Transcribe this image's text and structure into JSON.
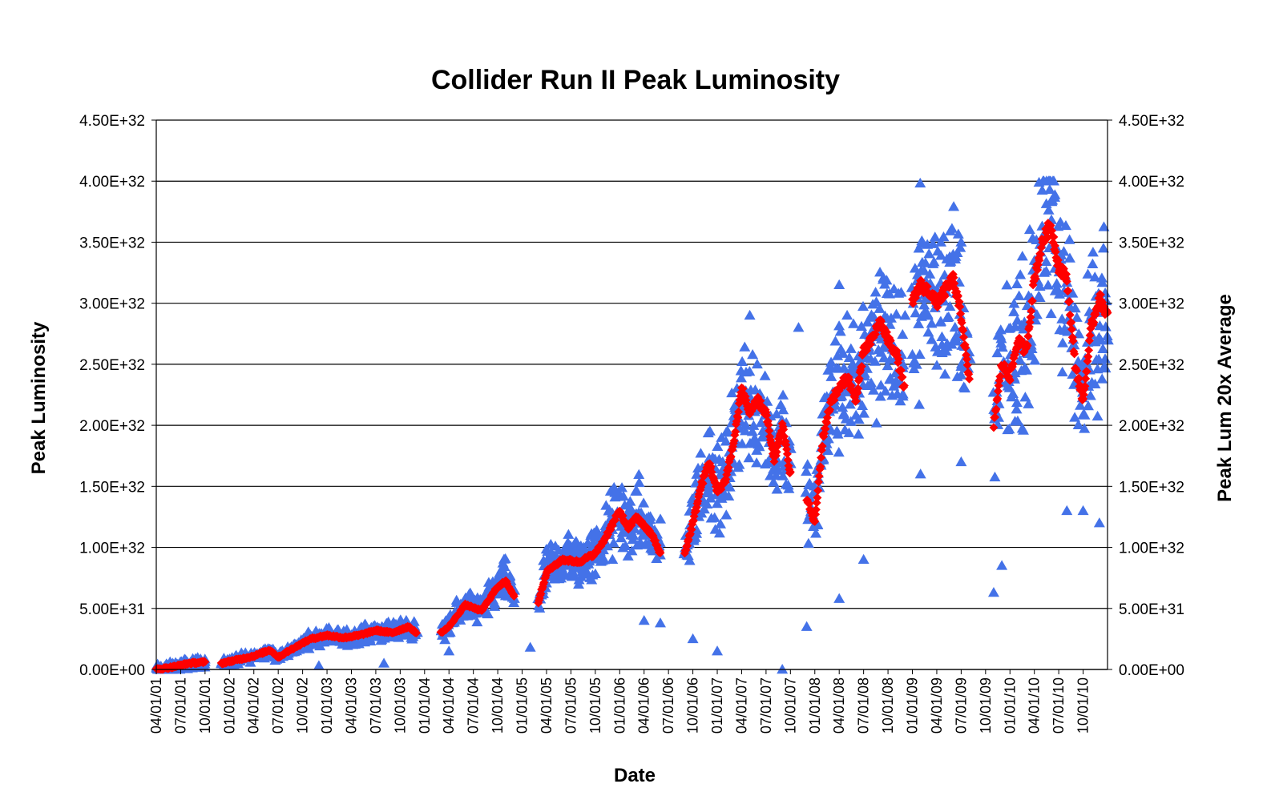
{
  "chart_data": {
    "type": "scatter",
    "title": "Collider Run II Peak Luminosity",
    "xlabel": "Date",
    "ylabel": "Peak Luminosity",
    "y2label": "Peak Lum 20x Average",
    "ylim": [
      0,
      4.5e+32
    ],
    "y2lim": [
      0,
      4.5e+32
    ],
    "grid": true,
    "x_range_months": [
      0,
      117
    ],
    "y_ticks": [
      {
        "value": 0,
        "label": "0.00E+00"
      },
      {
        "value": 5e+31,
        "label": "5.00E+31"
      },
      {
        "value": 1e+32,
        "label": "1.00E+32"
      },
      {
        "value": 1.5e+32,
        "label": "1.50E+32"
      },
      {
        "value": 2e+32,
        "label": "2.00E+32"
      },
      {
        "value": 2.5e+32,
        "label": "2.50E+32"
      },
      {
        "value": 3e+32,
        "label": "3.00E+32"
      },
      {
        "value": 3.5e+32,
        "label": "3.50E+32"
      },
      {
        "value": 4e+32,
        "label": "4.00E+32"
      },
      {
        "value": 4.5e+32,
        "label": "4.50E+32"
      }
    ],
    "x_ticks": [
      "04/01/01",
      "07/01/01",
      "10/01/01",
      "01/01/02",
      "04/01/02",
      "07/01/02",
      "10/01/02",
      "01/01/03",
      "04/01/03",
      "07/01/03",
      "10/01/03",
      "01/01/04",
      "04/01/04",
      "07/01/04",
      "10/01/04",
      "01/01/05",
      "04/01/05",
      "07/01/05",
      "10/01/05",
      "01/01/06",
      "04/01/06",
      "07/01/06",
      "10/01/06",
      "01/01/07",
      "04/01/07",
      "07/01/07",
      "10/01/07",
      "01/01/08",
      "04/01/08",
      "07/01/08",
      "10/01/08",
      "01/01/09",
      "04/01/09",
      "07/01/09",
      "10/01/09",
      "01/01/10",
      "04/01/10",
      "07/01/10",
      "10/01/10"
    ],
    "series": [
      {
        "name": "Peak Lum 20x Average",
        "marker": "diamond",
        "color": "#ff0000",
        "segments": [
          [
            [
              0,
              0
            ],
            [
              2,
              2e+30
            ],
            [
              4,
              5e+30
            ],
            [
              6,
              6e+30
            ]
          ],
          [
            [
              8,
              5e+30
            ],
            [
              10,
              8e+30
            ],
            [
              12,
              1.1e+31
            ],
            [
              14,
              1.6e+31
            ],
            [
              15,
              1e+31
            ],
            [
              17,
              1.8e+31
            ],
            [
              19,
              2.5e+31
            ],
            [
              21,
              2.8e+31
            ],
            [
              23,
              2.6e+31
            ],
            [
              25,
              2.8e+31
            ],
            [
              27,
              3.2e+31
            ],
            [
              29,
              3e+31
            ],
            [
              31,
              3.5e+31
            ],
            [
              32,
              3e+31
            ]
          ],
          [
            [
              35,
              3e+31
            ],
            [
              36,
              3.5e+31
            ],
            [
              38,
              5.3e+31
            ],
            [
              40,
              4.8e+31
            ],
            [
              42,
              6.8e+31
            ],
            [
              43,
              7.2e+31
            ],
            [
              44,
              6e+31
            ]
          ],
          [
            [
              47,
              5.5e+31
            ],
            [
              48,
              8e+31
            ],
            [
              50,
              9e+31
            ],
            [
              52,
              8.8e+31
            ],
            [
              54,
              9.5e+31
            ],
            [
              55,
              1.05e+32
            ],
            [
              57,
              1.3e+32
            ],
            [
              58,
              1.15e+32
            ],
            [
              59,
              1.25e+32
            ],
            [
              61,
              1.1e+32
            ],
            [
              62,
              9.5e+31
            ]
          ],
          [
            [
              65,
              9.5e+31
            ],
            [
              66,
              1.2e+32
            ],
            [
              67,
              1.5e+32
            ],
            [
              68,
              1.7e+32
            ],
            [
              69,
              1.45e+32
            ],
            [
              70,
              1.55e+32
            ],
            [
              71,
              1.85e+32
            ],
            [
              72,
              2.3e+32
            ],
            [
              73,
              2.1e+32
            ],
            [
              74,
              2.2e+32
            ],
            [
              75,
              2.1e+32
            ],
            [
              76,
              1.7e+32
            ],
            [
              77,
              2e+32
            ],
            [
              78,
              1.6e+32
            ]
          ],
          [
            [
              80,
              1.4e+32
            ],
            [
              81,
              1.2e+32
            ],
            [
              82,
              1.9e+32
            ],
            [
              83,
              2.2e+32
            ],
            [
              84,
              2.3e+32
            ],
            [
              85,
              2.4e+32
            ],
            [
              86,
              2.2e+32
            ],
            [
              87,
              2.6e+32
            ],
            [
              88,
              2.7e+32
            ],
            [
              89,
              2.85e+32
            ],
            [
              90,
              2.7e+32
            ],
            [
              91,
              2.6e+32
            ],
            [
              92,
              2.3e+32
            ]
          ],
          [
            [
              93,
              3e+32
            ],
            [
              94,
              3.15e+32
            ],
            [
              95,
              3.1e+32
            ],
            [
              96,
              3e+32
            ],
            [
              97,
              3.1e+32
            ],
            [
              98,
              3.2e+32
            ],
            [
              99,
              2.9e+32
            ],
            [
              100,
              2.35e+32
            ]
          ],
          [
            [
              103,
              2e+32
            ],
            [
              104,
              2.5e+32
            ],
            [
              105,
              2.4e+32
            ],
            [
              106,
              2.7e+32
            ],
            [
              107,
              2.6e+32
            ],
            [
              108,
              3.2e+32
            ],
            [
              109,
              3.5e+32
            ],
            [
              110,
              3.65e+32
            ],
            [
              111,
              3.3e+32
            ],
            [
              112,
              3.2e+32
            ],
            [
              113,
              2.5e+32
            ],
            [
              114,
              2.2e+32
            ],
            [
              115,
              2.8e+32
            ],
            [
              116,
              3.05e+32
            ],
            [
              117,
              2.9e+32
            ]
          ]
        ]
      },
      {
        "name": "Peak Luminosity",
        "marker": "triangle",
        "color": "#4472e8",
        "spread_ratio": 0.35,
        "outliers": [
          [
            20,
            3e+30
          ],
          [
            28,
            5e+30
          ],
          [
            36,
            1.5e+31
          ],
          [
            46,
            1.8e+31
          ],
          [
            60,
            4e+31
          ],
          [
            62,
            3.8e+31
          ],
          [
            66,
            2.5e+31
          ],
          [
            69,
            1.5e+31
          ],
          [
            77,
            0
          ],
          [
            80,
            3.5e+31
          ],
          [
            84,
            5.8e+31
          ],
          [
            87,
            9e+31
          ],
          [
            94,
            1.6e+32
          ],
          [
            99,
            1.7e+32
          ],
          [
            103,
            6.3e+31
          ],
          [
            104,
            8.5e+31
          ],
          [
            112,
            1.3e+32
          ],
          [
            114,
            1.3e+32
          ],
          [
            116,
            1.2e+32
          ]
        ],
        "peak": [
          [
            96.5,
            3.5e+32
          ],
          [
            99,
            3.5e+32
          ],
          [
            110,
            4e+32
          ],
          [
            116.5,
            3.45e+32
          ],
          [
            73,
            2.9e+32
          ],
          [
            79,
            2.8e+32
          ],
          [
            84,
            3.15e+32
          ]
        ]
      }
    ]
  }
}
